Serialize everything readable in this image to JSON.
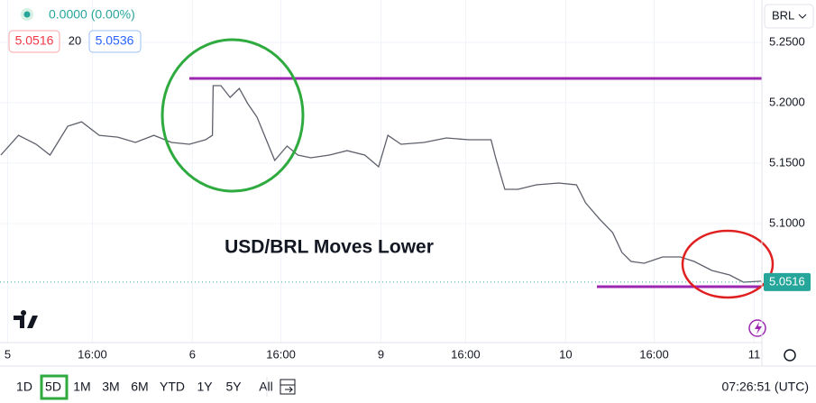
{
  "header": {
    "change": "0.0000 (0.00%)",
    "bid": "5.0516",
    "spread": "20",
    "ask": "5.0536",
    "currency": "BRL"
  },
  "chart_data": {
    "type": "line",
    "annotation": "USD/BRL Moves Lower",
    "x": [
      -0.9,
      1.4,
      3.7,
      5.5,
      7.8,
      9.6,
      11.9,
      14.3,
      16.6,
      19.0,
      21.3,
      23.6,
      25.7,
      26.6,
      26.7,
      27.7,
      28.9,
      30.1,
      31.2,
      32.4,
      33.6,
      34.7,
      36.3,
      37.7,
      39.4,
      41.8,
      44.1,
      46.4,
      48.2,
      49.4,
      51.1,
      54.1,
      57.0,
      59.9,
      62.8,
      63.4,
      64.6,
      66.3,
      68.7,
      71.6,
      73.9,
      75.1,
      76.9,
      78.6,
      79.8,
      81.0,
      82.7,
      85.1,
      87.4,
      89.2,
      91.5,
      93.8,
      95.6,
      97.9
    ],
    "values": [
      5.1567,
      5.1731,
      5.1657,
      5.1567,
      5.1806,
      5.1843,
      5.1731,
      5.1716,
      5.1672,
      5.1731,
      5.1672,
      5.1657,
      5.1694,
      5.1731,
      5.2142,
      5.2142,
      5.2045,
      5.2119,
      5.1993,
      5.1881,
      5.1694,
      5.1523,
      5.1642,
      5.1567,
      5.1545,
      5.1567,
      5.1604,
      5.1567,
      5.147,
      5.1731,
      5.1657,
      5.1672,
      5.1709,
      5.1694,
      5.1694,
      5.1545,
      5.1284,
      5.1284,
      5.1321,
      5.1336,
      5.1321,
      5.1172,
      5.1038,
      5.0926,
      5.0762,
      5.0687,
      5.0672,
      5.0724,
      5.0724,
      5.0687,
      5.0612,
      5.0575,
      5.0515,
      5.0523
    ],
    "color": "#5d606b",
    "last_price": 5.0516,
    "xlim": [
      -1,
      98
    ],
    "ylim": [
      5.0015,
      5.2851
    ],
    "xticks": [
      {
        "value": 0,
        "label": "5"
      },
      {
        "value": 11,
        "label": "16:00"
      },
      {
        "value": 24,
        "label": "6"
      },
      {
        "value": 35.5,
        "label": "16:00"
      },
      {
        "value": 48.5,
        "label": "9"
      },
      {
        "value": 59.5,
        "label": "16:00"
      },
      {
        "value": 72.5,
        "label": "10"
      },
      {
        "value": 84,
        "label": "16:00"
      },
      {
        "value": 97,
        "label": "11"
      }
    ],
    "yticks": [
      {
        "value": 5.1,
        "label": "5.1000"
      },
      {
        "value": 5.15,
        "label": "5.1500"
      },
      {
        "value": 5.2,
        "label": "5.2000"
      },
      {
        "value": 5.25,
        "label": "5.2500"
      }
    ],
    "grid": true
  },
  "toolbar": {
    "ranges": [
      "1D",
      "5D",
      "1M",
      "3M",
      "6M",
      "YTD",
      "1Y",
      "5Y",
      "All"
    ],
    "selected": "5D",
    "clock": "07:26:51 (UTC)"
  }
}
